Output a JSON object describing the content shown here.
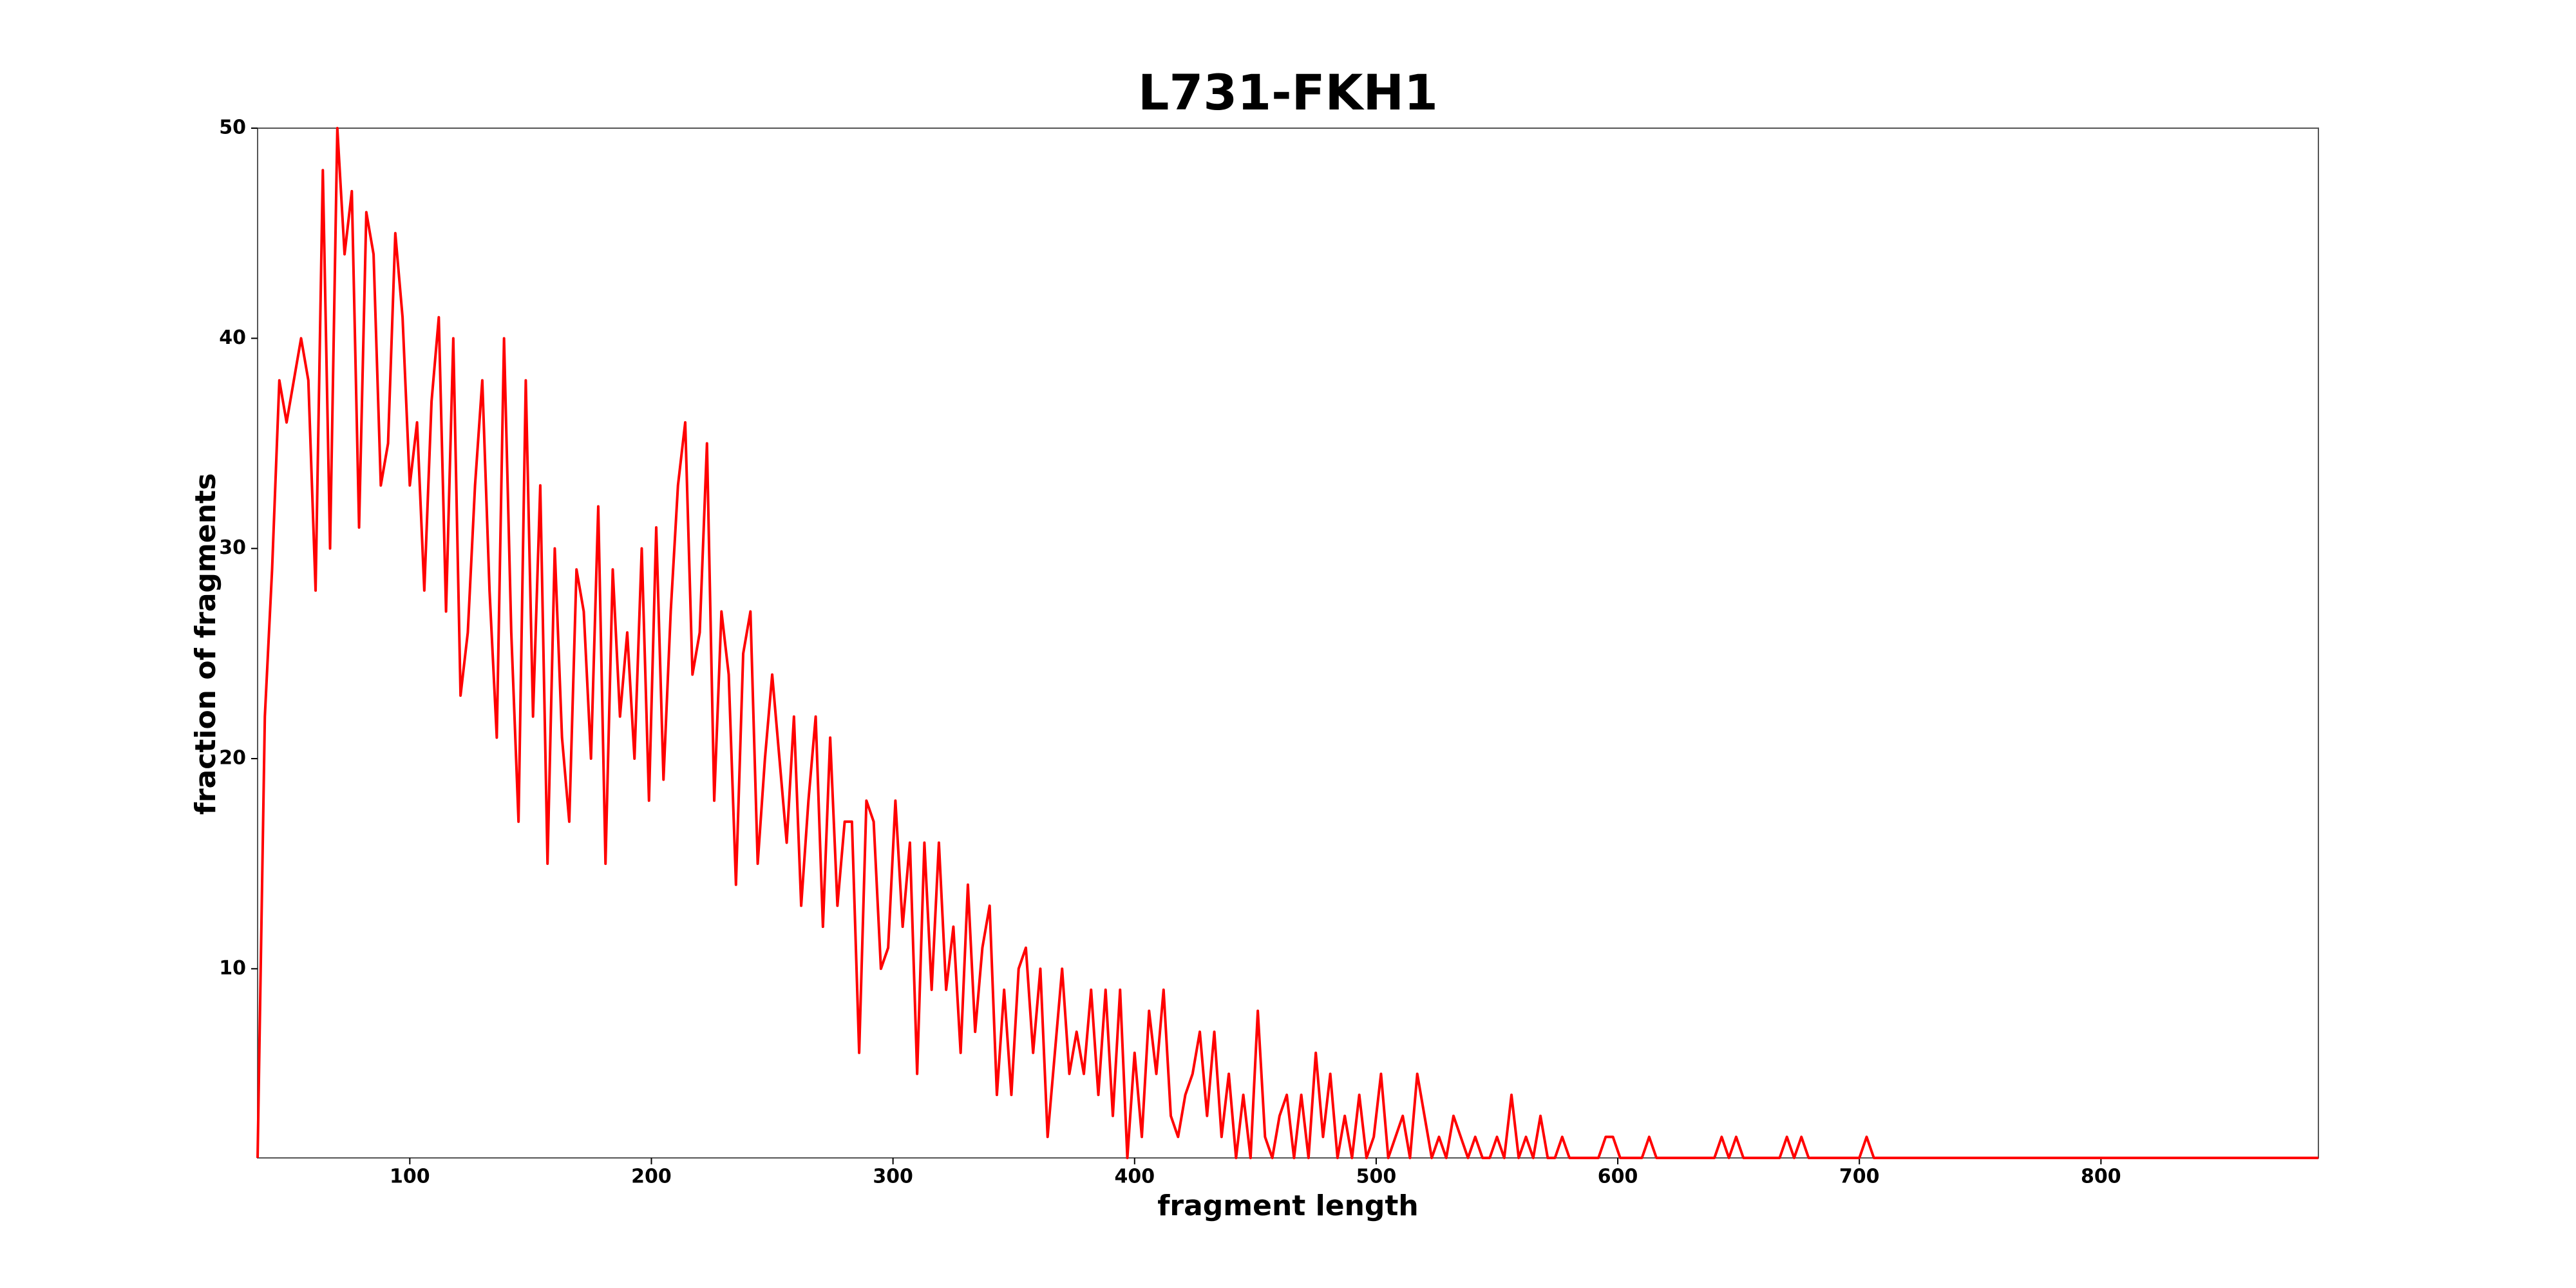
{
  "chart_data": {
    "type": "line",
    "title": "L731-FKH1",
    "x_label": "fragment length",
    "y_label": "fraction of fragments",
    "color": "#ff0000",
    "grid": false,
    "xlim": [
      37,
      890
    ],
    "ylim": [
      1,
      50
    ],
    "xticks": [
      100,
      200,
      300,
      400,
      500,
      600,
      700,
      800
    ],
    "yticks": [
      10,
      20,
      30,
      40,
      50
    ],
    "x": [
      37,
      40,
      43,
      46,
      49,
      52,
      55,
      58,
      61,
      64,
      67,
      70,
      73,
      76,
      79,
      82,
      85,
      88,
      91,
      94,
      97,
      100,
      103,
      106,
      109,
      112,
      115,
      118,
      121,
      124,
      127,
      130,
      133,
      136,
      139,
      142,
      145,
      148,
      151,
      154,
      157,
      160,
      163,
      166,
      169,
      172,
      175,
      178,
      181,
      184,
      187,
      190,
      193,
      196,
      199,
      202,
      205,
      208,
      211,
      214,
      217,
      220,
      223,
      226,
      229,
      232,
      235,
      238,
      241,
      244,
      247,
      250,
      253,
      256,
      259,
      262,
      265,
      268,
      271,
      274,
      277,
      280,
      283,
      286,
      289,
      292,
      295,
      298,
      301,
      304,
      307,
      310,
      313,
      316,
      319,
      322,
      325,
      328,
      331,
      334,
      337,
      340,
      343,
      346,
      349,
      352,
      355,
      358,
      361,
      364,
      367,
      370,
      373,
      376,
      379,
      382,
      385,
      388,
      391,
      394,
      397,
      400,
      403,
      406,
      409,
      412,
      415,
      418,
      421,
      424,
      427,
      430,
      433,
      436,
      439,
      442,
      445,
      448,
      451,
      454,
      457,
      460,
      463,
      466,
      469,
      472,
      475,
      478,
      481,
      484,
      487,
      490,
      493,
      496,
      499,
      502,
      505,
      508,
      511,
      514,
      517,
      520,
      523,
      526,
      529,
      532,
      535,
      538,
      541,
      544,
      547,
      550,
      553,
      556,
      559,
      562,
      565,
      568,
      571,
      574,
      577,
      580,
      583,
      586,
      589,
      592,
      595,
      598,
      601,
      604,
      607,
      610,
      613,
      616,
      619,
      640,
      643,
      646,
      649,
      652,
      667,
      670,
      673,
      676,
      679,
      700,
      703,
      706,
      890
    ],
    "values": [
      1,
      22,
      29,
      38,
      36,
      38,
      40,
      38,
      28,
      48,
      30,
      50,
      44,
      47,
      31,
      46,
      44,
      33,
      35,
      45,
      41,
      33,
      36,
      28,
      37,
      41,
      27,
      40,
      23,
      26,
      33,
      38,
      28,
      21,
      40,
      26,
      17,
      38,
      22,
      33,
      15,
      30,
      21,
      17,
      29,
      27,
      20,
      32,
      15,
      29,
      22,
      26,
      20,
      30,
      18,
      31,
      19,
      27,
      33,
      36,
      24,
      26,
      35,
      18,
      27,
      24,
      14,
      25,
      27,
      15,
      20,
      24,
      20,
      16,
      22,
      13,
      18,
      22,
      12,
      21,
      13,
      17,
      17,
      6,
      18,
      17,
      10,
      11,
      18,
      12,
      16,
      5,
      16,
      9,
      16,
      9,
      12,
      6,
      14,
      7,
      11,
      13,
      4,
      9,
      4,
      10,
      11,
      6,
      10,
      2,
      6,
      10,
      5,
      7,
      5,
      9,
      4,
      9,
      3,
      9,
      1,
      6,
      2,
      8,
      5,
      9,
      3,
      2,
      4,
      5,
      7,
      3,
      7,
      2,
      5,
      1,
      4,
      1,
      8,
      2,
      1,
      3,
      4,
      1,
      4,
      1,
      6,
      2,
      5,
      1,
      3,
      1,
      4,
      1,
      2,
      5,
      1,
      2,
      3,
      1,
      5,
      3,
      1,
      2,
      1,
      3,
      2,
      1,
      2,
      1,
      1,
      2,
      1,
      4,
      1,
      2,
      1,
      3,
      1,
      1,
      2,
      1,
      1,
      1,
      1,
      1,
      2,
      2,
      1,
      1,
      1,
      1,
      2,
      1,
      1,
      1,
      2,
      1,
      2,
      1,
      1,
      2,
      1,
      2,
      1,
      1,
      2,
      1,
      1
    ]
  }
}
